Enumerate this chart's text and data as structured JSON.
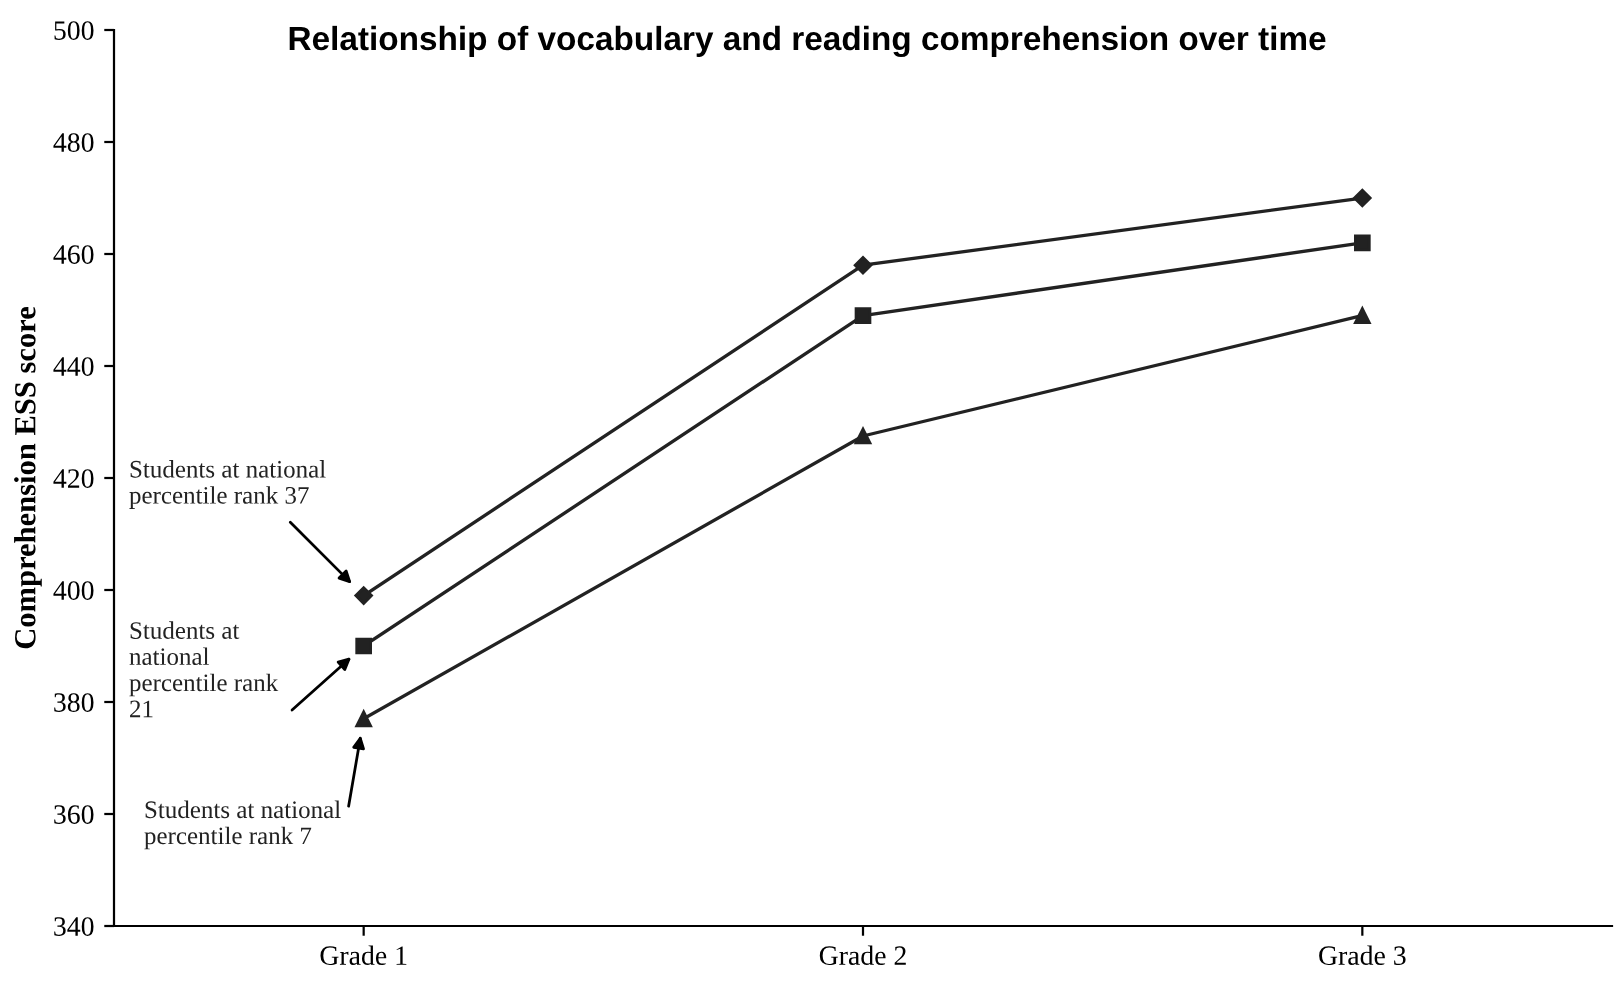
{
  "chart_data": {
    "type": "line",
    "title": "Relationship of vocabulary and reading comprehension over time",
    "ylabel": "Comprehension ESS score",
    "categories": [
      "Grade 1",
      "Grade 2",
      "Grade 3"
    ],
    "series": [
      {
        "name": "Students at national\npercentile rank 37",
        "color": "#222222",
        "marker": "diamond",
        "values": [
          399,
          458,
          470
        ]
      },
      {
        "name": "Students at\nnational\npercentile rank\n21",
        "color": "#222222",
        "marker": "square",
        "values": [
          390,
          449,
          462
        ]
      },
      {
        "name": "Students at national\npercentile rank 7",
        "color": "#222222",
        "marker": "triangle",
        "values": [
          377,
          427.5,
          449
        ]
      }
    ],
    "ylim": [
      340,
      500
    ],
    "yticks": [
      340,
      360,
      380,
      400,
      420,
      440,
      460,
      480,
      500
    ],
    "grid": false,
    "legend": false,
    "line_style": "solid"
  }
}
